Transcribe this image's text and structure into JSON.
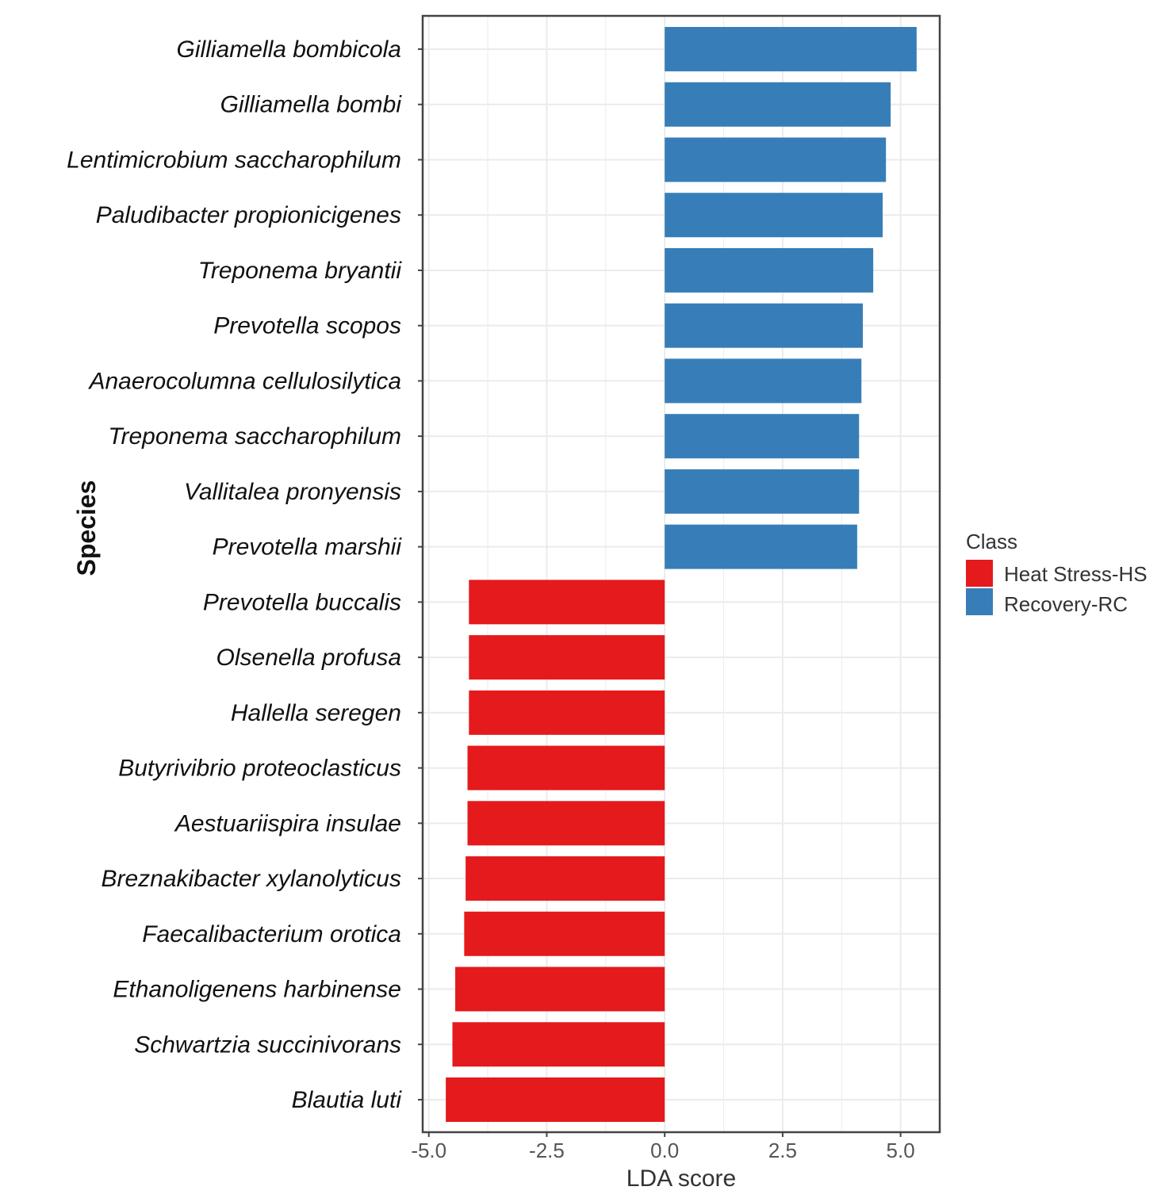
{
  "chart_data": {
    "type": "bar",
    "orientation": "horizontal",
    "xlabel": "LDA score",
    "ylabel": "Species",
    "xlim": [
      -5.13,
      5.83
    ],
    "xticks": [
      "-5.0",
      "-2.5",
      "0.0",
      "2.5",
      "5.0"
    ],
    "xtick_values": [
      -5.0,
      -2.5,
      0.0,
      2.5,
      5.0
    ],
    "grid": true,
    "legend": {
      "title": "Class",
      "position": "right",
      "entries": [
        "Heat Stress-HS",
        "Recovery-RC"
      ]
    },
    "colors": {
      "Heat Stress-HS": "#e41a1c",
      "Recovery-RC": "#377eb8"
    },
    "categories": [
      "Gilliamella bombicola",
      "Gilliamella bombi",
      "Lentimicrobium saccharophilum",
      "Paludibacter propionicigenes",
      "Treponema bryantii",
      "Prevotella scopos",
      "Anaerocolumna cellulosilytica",
      "Treponema saccharophilum",
      "Vallitalea pronyensis",
      "Prevotella marshii",
      "Prevotella buccalis",
      "Olsenella profusa",
      "Hallella seregen",
      "Butyrivibrio proteoclasticus",
      "Aestuariispira insulae",
      "Breznakibacter xylanolyticus",
      "Faecalibacterium orotica",
      "Ethanoligenens harbinense",
      "Schwartzia succinivorans",
      "Blautia luti"
    ],
    "values": [
      5.34,
      4.79,
      4.69,
      4.62,
      4.42,
      4.2,
      4.17,
      4.12,
      4.12,
      4.08,
      -4.15,
      -4.15,
      -4.15,
      -4.18,
      -4.18,
      -4.22,
      -4.25,
      -4.44,
      -4.5,
      -4.64
    ],
    "classes": [
      "Recovery-RC",
      "Recovery-RC",
      "Recovery-RC",
      "Recovery-RC",
      "Recovery-RC",
      "Recovery-RC",
      "Recovery-RC",
      "Recovery-RC",
      "Recovery-RC",
      "Recovery-RC",
      "Heat Stress-HS",
      "Heat Stress-HS",
      "Heat Stress-HS",
      "Heat Stress-HS",
      "Heat Stress-HS",
      "Heat Stress-HS",
      "Heat Stress-HS",
      "Heat Stress-HS",
      "Heat Stress-HS",
      "Heat Stress-HS"
    ]
  }
}
